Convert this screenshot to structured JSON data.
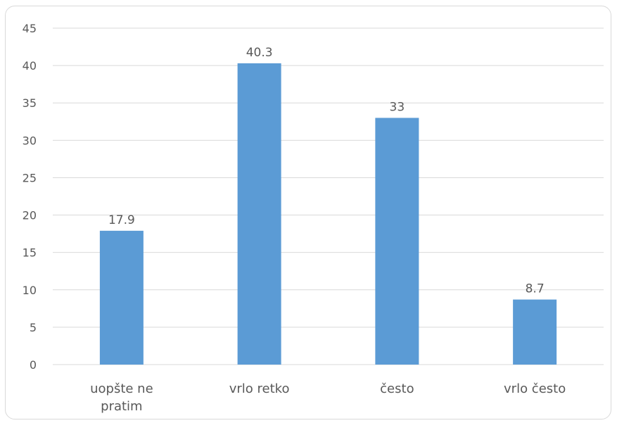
{
  "chart_data": {
    "type": "bar",
    "categories": [
      [
        "uopšte ne",
        "pratim"
      ],
      [
        "vrlo retko"
      ],
      [
        "često"
      ],
      [
        "vrlo često"
      ]
    ],
    "values": [
      17.9,
      40.3,
      33,
      8.7
    ],
    "data_labels": [
      "17.9",
      "40.3",
      "33",
      "8.7"
    ],
    "title": "",
    "xlabel": "",
    "ylabel": "",
    "ylim": [
      0,
      45
    ],
    "yticks": [
      0,
      5,
      10,
      15,
      20,
      25,
      30,
      35,
      40,
      45
    ],
    "grid": true,
    "legend": "none",
    "bar_color": "#5b9bd5",
    "grid_color": "#d9d9d9",
    "text_color": "#595959"
  }
}
